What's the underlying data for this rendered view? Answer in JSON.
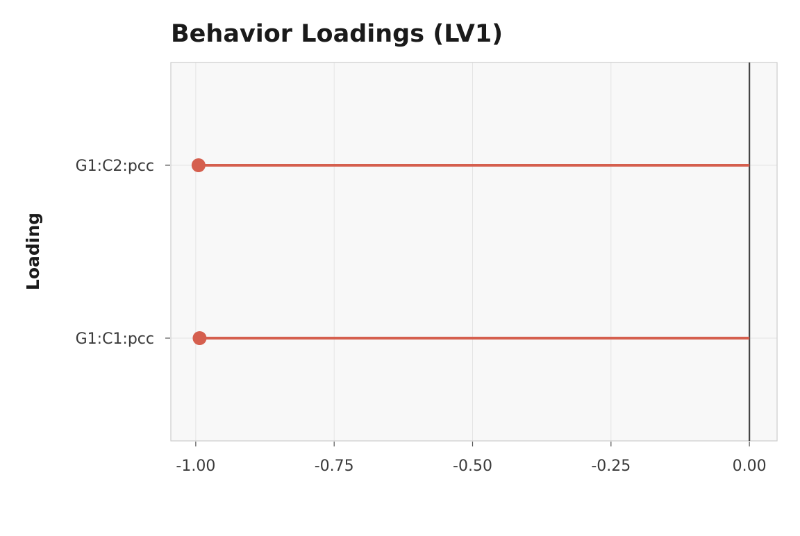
{
  "chart_data": {
    "type": "lollipop",
    "title": "Behavior Loadings (LV1)",
    "xlabel": "",
    "ylabel": "Loading",
    "categories": [
      "G1:C2:pcc",
      "G1:C1:pcc"
    ],
    "values": [
      -0.995,
      -0.993
    ],
    "xlim": [
      -1.045,
      0.05
    ],
    "xticks": [
      -1.0,
      -0.75,
      -0.5,
      -0.25,
      0.0
    ],
    "xtick_labels": [
      "-1.00",
      "-0.75",
      "-0.50",
      "-0.25",
      "0.00"
    ],
    "reference_line": 0.0,
    "grid": true,
    "legend": "none",
    "colors": {
      "series": "#d55f4e",
      "panel_background": "#f8f8f8",
      "panel_border": "#cccccc",
      "grid": "#e4e4e4",
      "reference_line": "#444444"
    }
  }
}
